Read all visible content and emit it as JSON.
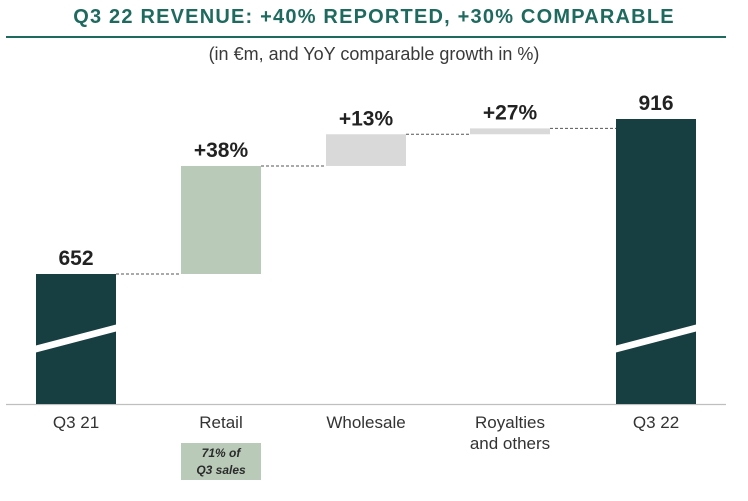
{
  "title": "Q3 22 REVENUE: +40% REPORTED, +30% COMPARABLE",
  "subtitle": "(in €m, and YoY comparable growth in %)",
  "colors": {
    "total": "#173f42",
    "retail": "#b9cbb8",
    "wholesale": "#d9d9d9",
    "royalties": "#d9d9d9",
    "title": "#1e6a5f"
  },
  "chart_data": {
    "type": "bar",
    "subtype": "waterfall",
    "title": "Q3 22 REVENUE: +40% REPORTED, +30% COMPARABLE",
    "subtitle": "(in €m, and YoY comparable growth in %)",
    "categories": [
      "Q3 21",
      "Retail",
      "Wholesale",
      "Royalties and others",
      "Q3 22"
    ],
    "category_lines": [
      [
        "Q3 21"
      ],
      [
        "Retail"
      ],
      [
        "Wholesale"
      ],
      [
        "Royalties",
        "and others"
      ],
      [
        "Q3 22"
      ]
    ],
    "bars": [
      {
        "category": "Q3 21",
        "kind": "total",
        "start": 0,
        "end": 652,
        "label": "652"
      },
      {
        "category": "Retail",
        "kind": "increase",
        "start": 652,
        "end": 836,
        "label": "+38%"
      },
      {
        "category": "Wholesale",
        "kind": "increase",
        "start": 836,
        "end": 890,
        "label": "+13%"
      },
      {
        "category": "Royalties and others",
        "kind": "increase",
        "start": 890,
        "end": 900,
        "label": "+27%"
      },
      {
        "category": "Q3 22",
        "kind": "total",
        "start": 0,
        "end": 916,
        "label": "916"
      }
    ],
    "axis_break": true,
    "note": {
      "category": "Retail",
      "text": "71% of\nQ3 sales"
    }
  }
}
